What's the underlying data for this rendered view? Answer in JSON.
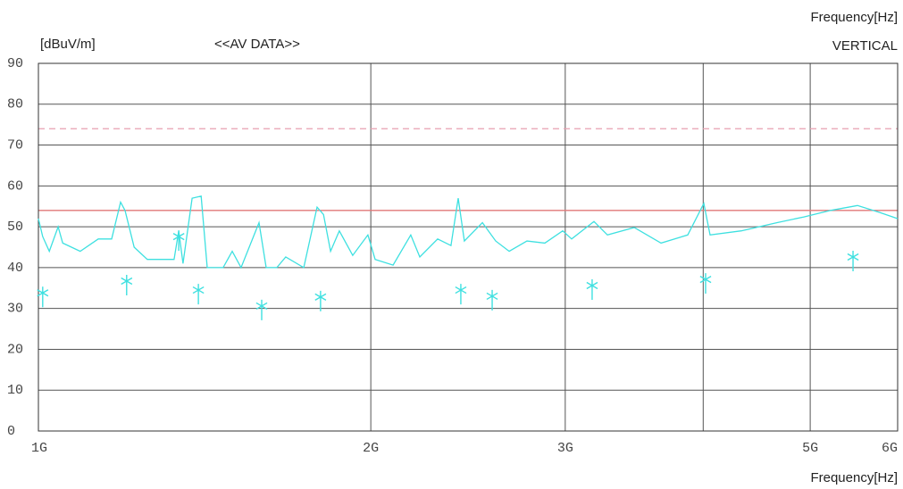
{
  "chart_data": {
    "type": "line",
    "y_label": "[dBuV/m]",
    "title": "<<AV DATA>>",
    "top_label": "Frequency[Hz]",
    "x_label": "Frequency[Hz]",
    "log_x": true,
    "grid": true,
    "xlim": [
      1,
      6
    ],
    "ylim": [
      0,
      90
    ],
    "xticks": [
      {
        "value": 1,
        "label": "1G"
      },
      {
        "value": 2,
        "label": "2G"
      },
      {
        "value": 3,
        "label": "3G"
      },
      {
        "value": 4,
        "label": null
      },
      {
        "value": 5,
        "label": "5G"
      },
      {
        "value": 6,
        "label": "6G"
      }
    ],
    "yticks": [
      0,
      10,
      20,
      30,
      40,
      50,
      60,
      70,
      80,
      90
    ],
    "limit_lines": [
      {
        "value": 54,
        "color": "#e07878",
        "dashed": false
      },
      {
        "value": 74,
        "color": "#e8a0b0",
        "dashed": true
      }
    ],
    "series": [
      {
        "name": "VERTICAL",
        "color": "#3ee0e0",
        "x": [
          1.0,
          1.009,
          1.023,
          1.042,
          1.052,
          1.091,
          1.133,
          1.165,
          1.187,
          1.198,
          1.221,
          1.255,
          1.327,
          1.34,
          1.352,
          1.378,
          1.404,
          1.422,
          1.47,
          1.498,
          1.526,
          1.584,
          1.608,
          1.644,
          1.675,
          1.739,
          1.788,
          1.812,
          1.839,
          1.873,
          1.926,
          1.988,
          2.018,
          2.095,
          2.174,
          2.215,
          2.299,
          2.364,
          2.4,
          2.431,
          2.524,
          2.595,
          2.669,
          2.77,
          2.875,
          2.984,
          3.04,
          3.185,
          3.276,
          3.464,
          3.663,
          3.873,
          4.005,
          4.058,
          4.331,
          4.667,
          4.935,
          5.218,
          5.518,
          5.781,
          6.0
        ],
        "values": [
          52,
          47.6,
          44,
          50,
          46,
          44,
          47,
          47,
          56,
          54,
          45,
          42,
          42,
          49,
          41,
          57,
          57.5,
          40,
          40,
          44,
          40,
          51,
          40,
          40,
          42.6,
          40,
          54.8,
          53,
          44,
          49,
          43,
          48,
          42,
          40.6,
          48,
          42.6,
          47,
          45.4,
          57,
          46.5,
          51,
          46.5,
          44,
          46.5,
          46,
          49,
          47,
          51.3,
          48,
          49.8,
          46,
          48,
          55.7,
          48,
          49,
          51,
          52.4,
          54,
          55.2,
          53.5,
          52
        ]
      },
      {
        "type": "scatter",
        "marker": "asterisk",
        "color": "#3ee0e0",
        "x": [
          1.009,
          1.202,
          1.34,
          1.396,
          1.593,
          1.801,
          2.413,
          2.576,
          3.173,
          4.02,
          5.467
        ],
        "values": [
          33.8,
          36.7,
          47.6,
          34.5,
          30.6,
          32.8,
          34.5,
          33.0,
          35.6,
          37.1,
          42.6
        ]
      }
    ]
  }
}
